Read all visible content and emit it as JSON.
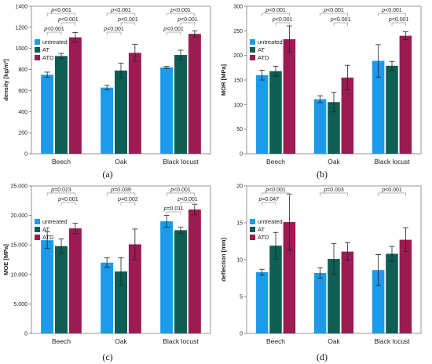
{
  "chart_data": [
    {
      "type": "bar",
      "panel_label": "(a)",
      "ylabel": "density [kg/m³]",
      "ylim": [
        0,
        1400
      ],
      "yticks": [
        0,
        200,
        400,
        600,
        800,
        1000,
        1200,
        1400
      ],
      "ytick_labels": [
        "0",
        "200",
        "400",
        "600",
        "800",
        "1000",
        "1200",
        "1400"
      ],
      "categories": [
        "Beech",
        "Oak",
        "Black locust"
      ],
      "legend_position": "upper-left",
      "series": [
        {
          "name": "untreated",
          "color": "#1b9be9",
          "values": [
            750,
            628,
            820
          ],
          "errors": [
            25,
            22,
            10
          ]
        },
        {
          "name": "AT",
          "color": "#0e5e53",
          "values": [
            928,
            790,
            938
          ],
          "errors": [
            25,
            70,
            45
          ]
        },
        {
          "name": "ATD",
          "color": "#9c1b52",
          "values": [
            1105,
            958,
            1138
          ],
          "errors": [
            45,
            80,
            30
          ]
        }
      ],
      "annotations": [
        {
          "group": 0,
          "from": 0,
          "to": 2,
          "tier": 0,
          "text": "p<0.001"
        },
        {
          "group": 0,
          "from": 1,
          "to": 2,
          "tier": 1,
          "text": "p<0.001"
        },
        {
          "group": 0,
          "from": 0,
          "to": 1,
          "tier": 2,
          "text": "p<0.001"
        },
        {
          "group": 1,
          "from": 0,
          "to": 2,
          "tier": 0,
          "text": "p<0.001"
        },
        {
          "group": 1,
          "from": 1,
          "to": 2,
          "tier": 1,
          "text": "p<0.001"
        },
        {
          "group": 1,
          "from": 0,
          "to": 1,
          "tier": 2,
          "text": "p<0.001"
        },
        {
          "group": 2,
          "from": 0,
          "to": 2,
          "tier": 0,
          "text": "p<0.001"
        },
        {
          "group": 2,
          "from": 1,
          "to": 2,
          "tier": 1,
          "text": "p<0.001"
        },
        {
          "group": 2,
          "from": 0,
          "to": 1,
          "tier": 2,
          "text": "p<0.001"
        }
      ]
    },
    {
      "type": "bar",
      "panel_label": "(b)",
      "ylabel": "MOR   [MPa]",
      "ylim": [
        0,
        300
      ],
      "yticks": [
        0,
        50,
        100,
        150,
        200,
        250,
        300
      ],
      "ytick_labels": [
        "0",
        "50",
        "100",
        "150",
        "200",
        "250",
        "300"
      ],
      "categories": [
        "Beech",
        "Oak",
        "Black locust"
      ],
      "legend_position": "upper-left",
      "series": [
        {
          "name": "untreated",
          "color": "#1b9be9",
          "values": [
            160,
            111,
            189
          ],
          "errors": [
            10,
            7,
            33
          ]
        },
        {
          "name": "AT",
          "color": "#0e5e53",
          "values": [
            168,
            105,
            179
          ],
          "errors": [
            10,
            20,
            9
          ]
        },
        {
          "name": "ATD",
          "color": "#9c1b52",
          "values": [
            233,
            155,
            240
          ],
          "errors": [
            27,
            25,
            8
          ]
        }
      ],
      "annotations": [
        {
          "group": 0,
          "from": 0,
          "to": 2,
          "tier": 0,
          "text": "p<0.001"
        },
        {
          "group": 0,
          "from": 1,
          "to": 2,
          "tier": 1,
          "text": "p<0.001"
        },
        {
          "group": 1,
          "from": 0,
          "to": 2,
          "tier": 0,
          "text": "p<0.001"
        },
        {
          "group": 1,
          "from": 1,
          "to": 2,
          "tier": 1,
          "text": "p<0.001"
        },
        {
          "group": 2,
          "from": 0,
          "to": 2,
          "tier": 0,
          "text": "p<0.001"
        },
        {
          "group": 2,
          "from": 1,
          "to": 2,
          "tier": 1,
          "text": "p<0.001"
        }
      ]
    },
    {
      "type": "bar",
      "panel_label": "(c)",
      "ylabel": "MOE   [MPa]",
      "ylim": [
        0,
        25000
      ],
      "yticks": [
        0,
        5000,
        10000,
        15000,
        20000,
        25000
      ],
      "ytick_labels": [
        "0",
        "5.000",
        "10.000",
        "15.000",
        "20.000",
        "25.000"
      ],
      "categories": [
        "Beech",
        "Oak",
        "Black locust"
      ],
      "legend_position": "upper-left",
      "series": [
        {
          "name": "untreated",
          "color": "#1b9be9",
          "values": [
            15800,
            12000,
            19000
          ],
          "errors": [
            1400,
            800,
            1000
          ]
        },
        {
          "name": "AT",
          "color": "#0e5e53",
          "values": [
            14800,
            10500,
            17500
          ],
          "errors": [
            1200,
            2300,
            500
          ]
        },
        {
          "name": "ATD",
          "color": "#9c1b52",
          "values": [
            17800,
            15100,
            21000
          ],
          "errors": [
            900,
            2600,
            900
          ]
        }
      ],
      "annotations": [
        {
          "group": 0,
          "from": 0,
          "to": 2,
          "tier": 0,
          "text": "p=0.023"
        },
        {
          "group": 0,
          "from": 1,
          "to": 2,
          "tier": 1,
          "text": "p<0.001"
        },
        {
          "group": 1,
          "from": 0,
          "to": 2,
          "tier": 0,
          "text": "p=0.039"
        },
        {
          "group": 1,
          "from": 1,
          "to": 2,
          "tier": 1,
          "text": "p=0.002"
        },
        {
          "group": 2,
          "from": 0,
          "to": 2,
          "tier": 0,
          "text": "p<0.001"
        },
        {
          "group": 2,
          "from": 1,
          "to": 2,
          "tier": 1,
          "text": "p<0.001"
        },
        {
          "group": 2,
          "from": 0,
          "to": 1,
          "tier": 2,
          "text": "p=0.011"
        }
      ]
    },
    {
      "type": "bar",
      "panel_label": "(d)",
      "ylabel": "deflection [mm]",
      "ylim": [
        0,
        20
      ],
      "yticks": [
        0,
        5,
        10,
        15,
        20
      ],
      "ytick_labels": [
        "0",
        "5",
        "10",
        "15",
        "20"
      ],
      "categories": [
        "Beech",
        "Oak",
        "Black locust"
      ],
      "legend_position": "upper-left",
      "series": [
        {
          "name": "untreated",
          "color": "#1b9be9",
          "values": [
            8.3,
            8.2,
            8.6
          ],
          "errors": [
            0.4,
            0.7,
            2.1
          ]
        },
        {
          "name": "AT",
          "color": "#0e5e53",
          "values": [
            11.9,
            10.1,
            10.8
          ],
          "errors": [
            1.8,
            2.1,
            1.0
          ]
        },
        {
          "name": "ATD",
          "color": "#9c1b52",
          "values": [
            15.1,
            11.1,
            12.7
          ],
          "errors": [
            3.8,
            1.2,
            1.6
          ]
        }
      ],
      "annotations": [
        {
          "group": 0,
          "from": 0,
          "to": 2,
          "tier": 0,
          "text": "p<0.001"
        },
        {
          "group": 0,
          "from": 0,
          "to": 1,
          "tier": 1,
          "text": "p=0.047"
        },
        {
          "group": 1,
          "from": 0,
          "to": 2,
          "tier": 0,
          "text": "p=0.003"
        },
        {
          "group": 2,
          "from": 0,
          "to": 2,
          "tier": 0,
          "text": "p<0.001"
        }
      ]
    }
  ]
}
